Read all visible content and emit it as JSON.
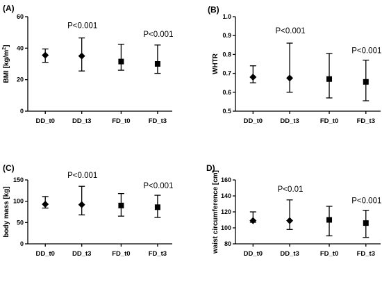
{
  "chart_data": [
    {
      "panel_label": "(A)",
      "type": "scatter",
      "ylabel_main": "BMI [kg/m",
      "ylabel_sup": "2",
      "ylabel_end": "]",
      "ylim": [
        0,
        60
      ],
      "yticks": [
        0,
        20,
        40,
        60
      ],
      "ytick_labels": [
        "0",
        "20",
        "40",
        "60"
      ],
      "categories": [
        "DD_t0",
        "DD_t3",
        "FD_t0",
        "FD_t3"
      ],
      "markers": [
        "diamond",
        "diamond",
        "square",
        "square"
      ],
      "mean": [
        35.5,
        35,
        31.5,
        30
      ],
      "err_low": [
        31,
        25.5,
        26,
        24
      ],
      "err_high": [
        39.5,
        46.5,
        42.5,
        42
      ],
      "annotations": [
        {
          "category": "DD_t3",
          "text": "P<0.001"
        },
        {
          "category": "FD_t3",
          "text": "P<0.001"
        }
      ]
    },
    {
      "panel_label": "(B)",
      "type": "scatter",
      "ylabel_main": "WHTR",
      "ylabel_sup": "",
      "ylabel_end": "",
      "ylim": [
        0.5,
        1.0
      ],
      "yticks": [
        0.5,
        0.6,
        0.7,
        0.8,
        0.9,
        1.0
      ],
      "ytick_labels": [
        "0.5",
        "0.6",
        "0.7",
        "0.8",
        "0.9",
        "1.0"
      ],
      "categories": [
        "DD_t0",
        "DD_t3",
        "FD_t0",
        "FD_t3"
      ],
      "markers": [
        "diamond",
        "diamond",
        "square",
        "square"
      ],
      "mean": [
        0.68,
        0.675,
        0.67,
        0.655
      ],
      "err_low": [
        0.65,
        0.6,
        0.57,
        0.555
      ],
      "err_high": [
        0.74,
        0.86,
        0.805,
        0.77
      ],
      "annotations": [
        {
          "category": "DD_t3",
          "text": "P<0.001"
        },
        {
          "category": "FD_t3",
          "text": "P<0.001"
        }
      ]
    },
    {
      "panel_label": "(C)",
      "type": "scatter",
      "ylabel_main": "body mass [kg]",
      "ylabel_sup": "",
      "ylabel_end": "",
      "ylim": [
        0,
        150
      ],
      "yticks": [
        0,
        50,
        100,
        150
      ],
      "ytick_labels": [
        "0",
        "50",
        "100",
        "150"
      ],
      "categories": [
        "DD_t0",
        "DD_t3",
        "FD_t0",
        "FD_t3"
      ],
      "markers": [
        "diamond",
        "diamond",
        "square",
        "square"
      ],
      "mean": [
        93,
        92,
        90,
        86
      ],
      "err_low": [
        84,
        68,
        65,
        62
      ],
      "err_high": [
        111,
        135,
        118,
        114
      ],
      "annotations": [
        {
          "category": "DD_t3",
          "text": "P<0.001"
        },
        {
          "category": "FD_t3",
          "text": "P<0.001"
        }
      ]
    },
    {
      "panel_label": "D)",
      "type": "scatter",
      "ylabel_main": "waist circumference [cm]",
      "ylabel_sup": "",
      "ylabel_end": "",
      "ylim": [
        80,
        160
      ],
      "yticks": [
        80,
        100,
        120,
        140,
        160
      ],
      "ytick_labels": [
        "80",
        "100",
        "120",
        "140",
        "160"
      ],
      "categories": [
        "DD_t0",
        "DD_t3",
        "FD_t0",
        "FD_t3"
      ],
      "markers": [
        "diamond",
        "diamond",
        "square",
        "square"
      ],
      "mean": [
        109,
        109,
        110,
        106
      ],
      "err_low": [
        107,
        98,
        90,
        88
      ],
      "err_high": [
        120,
        135,
        127,
        122
      ],
      "annotations": [
        {
          "category": "DD_t3",
          "text": "P<0.01"
        },
        {
          "category": "FD_t3",
          "text": "P<0.001"
        }
      ]
    }
  ]
}
